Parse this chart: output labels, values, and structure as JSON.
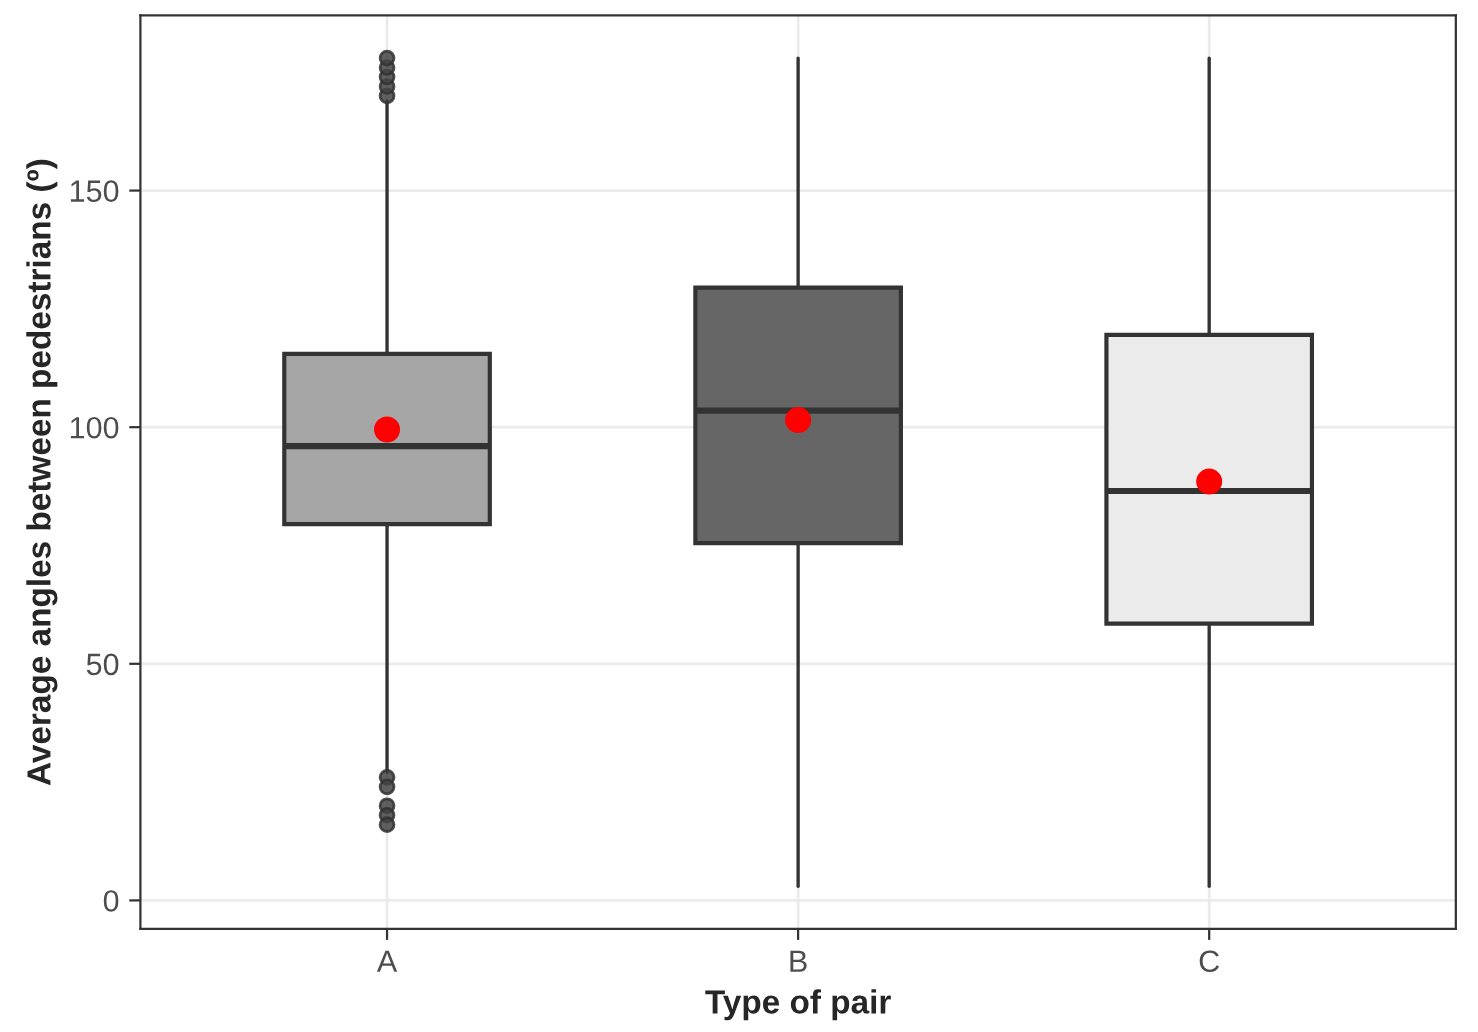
{
  "chart_data": {
    "type": "box",
    "xlabel": "Type of pair",
    "ylabel": "Average angles between pedestrians (º)",
    "categories": [
      "A",
      "B",
      "C"
    ],
    "boxes": [
      {
        "low": 27,
        "q1": 79.5,
        "median": 96,
        "q3": 115.5,
        "high": 169,
        "mean": 99.5,
        "outliers": [
          170,
          172,
          174,
          176,
          178,
          26,
          24,
          20,
          18,
          16
        ]
      },
      {
        "low": 3,
        "q1": 75.5,
        "median": 103.5,
        "q3": 129.5,
        "high": 178,
        "mean": 101.5
      },
      {
        "low": 3,
        "q1": 58.5,
        "median": 86.5,
        "q3": 119.5,
        "high": 178,
        "mean": 88.5
      }
    ],
    "colors": [
      "#a6a6a6",
      "#666666",
      "#ebebeb"
    ],
    "ylim": [
      -6,
      187
    ],
    "yticks": [
      0,
      50,
      100,
      150
    ],
    "grid": true,
    "legend": false
  }
}
